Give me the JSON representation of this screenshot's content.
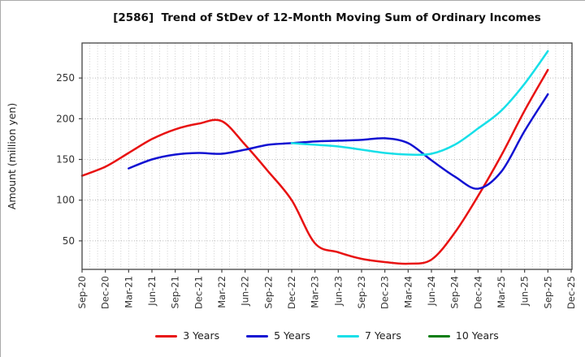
{
  "title": "[2586]  Trend of StDev of 12-Month Moving Sum of Ordinary Incomes",
  "chart_data": {
    "type": "line",
    "title": "[2586]  Trend of StDev of 12-Month Moving Sum of Ordinary Incomes",
    "xlabel": "",
    "ylabel": "Amount (million yen)",
    "categories": [
      "Sep-20",
      "Dec-20",
      "Mar-21",
      "Jun-21",
      "Sep-21",
      "Dec-21",
      "Mar-22",
      "Jun-22",
      "Sep-22",
      "Dec-22",
      "Mar-23",
      "Jun-23",
      "Sep-23",
      "Dec-23",
      "Mar-24",
      "Jun-24",
      "Sep-24",
      "Dec-24",
      "Mar-25",
      "Jun-25",
      "Sep-25",
      "Dec-25"
    ],
    "y_ticks": [
      50,
      100,
      150,
      200,
      250
    ],
    "ylim": [
      15,
      293
    ],
    "grid": "dotted; vertical monthly minor lines, horizontal at 50-unit steps",
    "legend_position": "bottom-center",
    "tick_label_rotation_deg": 90,
    "series": [
      {
        "name": "3 Years",
        "color": "#e81212",
        "values": [
          130,
          141,
          158,
          175,
          187,
          194,
          197,
          168,
          135,
          100,
          47,
          36,
          28,
          24,
          22,
          27,
          60,
          105,
          155,
          210,
          260,
          null
        ]
      },
      {
        "name": "5 Years",
        "color": "#1212d2",
        "values": [
          null,
          null,
          139,
          150,
          156,
          158,
          157,
          162,
          168,
          170,
          172,
          173,
          174,
          176,
          170,
          149,
          129,
          114,
          135,
          185,
          230,
          null
        ]
      },
      {
        "name": "7 Years",
        "color": "#17dfe8",
        "values": [
          null,
          null,
          null,
          null,
          null,
          null,
          null,
          null,
          null,
          170,
          168,
          166,
          162,
          158,
          156,
          157,
          168,
          188,
          210,
          243,
          283,
          null
        ]
      },
      {
        "name": "10 Years",
        "color": "#067d0e",
        "values": [
          null,
          null,
          null,
          null,
          null,
          null,
          null,
          null,
          null,
          null,
          null,
          null,
          null,
          null,
          null,
          null,
          null,
          null,
          null,
          null,
          null,
          null
        ]
      }
    ]
  },
  "axes": {
    "y_label": "Amount (million yen)"
  }
}
